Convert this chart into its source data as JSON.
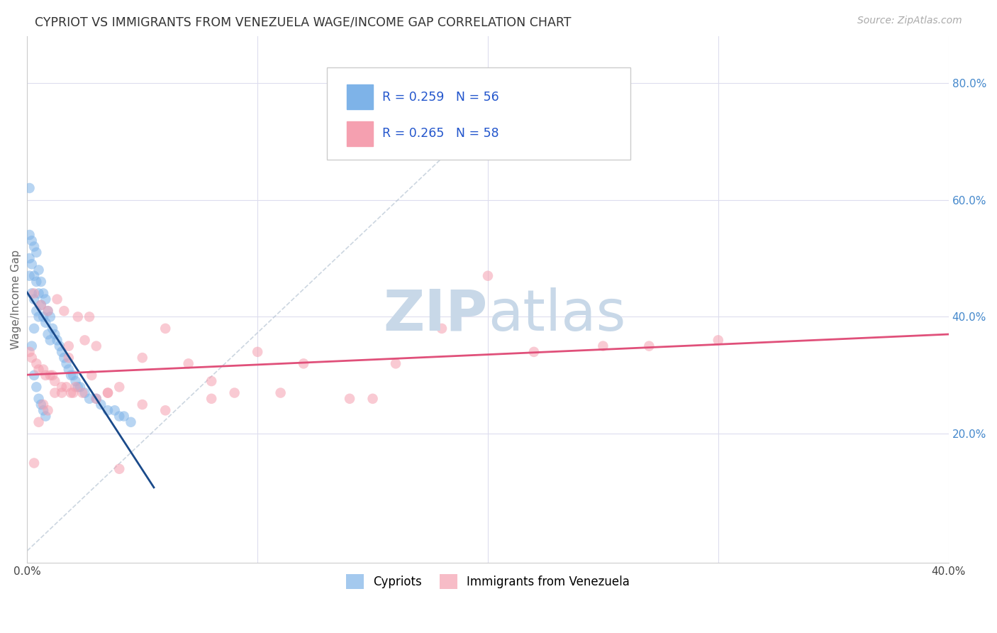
{
  "title": "CYPRIOT VS IMMIGRANTS FROM VENEZUELA WAGE/INCOME GAP CORRELATION CHART",
  "source": "Source: ZipAtlas.com",
  "ylabel": "Wage/Income Gap",
  "xlim": [
    0.0,
    0.4
  ],
  "ylim": [
    -0.02,
    0.88
  ],
  "xticks": [
    0.0,
    0.1,
    0.2,
    0.3,
    0.4
  ],
  "yticks_right": [
    0.2,
    0.4,
    0.6,
    0.8
  ],
  "ytick_labels_right": [
    "20.0%",
    "40.0%",
    "60.0%",
    "80.0%"
  ],
  "xtick_labels": [
    "0.0%",
    "",
    "",
    "",
    "40.0%"
  ],
  "cypriot_R": 0.259,
  "cypriot_N": 56,
  "venezuela_R": 0.265,
  "venezuela_N": 58,
  "blue_color": "#7EB3E8",
  "blue_line_color": "#1A4A8A",
  "pink_color": "#F5A0B0",
  "pink_line_color": "#E0507A",
  "grid_color": "#DDDDEE",
  "watermark_color": "#C8D8E8",
  "cypriot_x": [
    0.001,
    0.001,
    0.001,
    0.002,
    0.002,
    0.002,
    0.003,
    0.003,
    0.003,
    0.003,
    0.004,
    0.004,
    0.004,
    0.005,
    0.005,
    0.005,
    0.006,
    0.006,
    0.007,
    0.007,
    0.008,
    0.008,
    0.009,
    0.009,
    0.01,
    0.01,
    0.011,
    0.012,
    0.013,
    0.014,
    0.015,
    0.016,
    0.017,
    0.018,
    0.019,
    0.02,
    0.021,
    0.022,
    0.023,
    0.025,
    0.027,
    0.03,
    0.032,
    0.035,
    0.038,
    0.04,
    0.042,
    0.045,
    0.001,
    0.002,
    0.003,
    0.004,
    0.005,
    0.006,
    0.007,
    0.008
  ],
  "cypriot_y": [
    0.54,
    0.5,
    0.47,
    0.53,
    0.49,
    0.44,
    0.52,
    0.47,
    0.43,
    0.38,
    0.51,
    0.46,
    0.41,
    0.48,
    0.44,
    0.4,
    0.46,
    0.42,
    0.44,
    0.4,
    0.43,
    0.39,
    0.41,
    0.37,
    0.4,
    0.36,
    0.38,
    0.37,
    0.36,
    0.35,
    0.34,
    0.33,
    0.32,
    0.31,
    0.3,
    0.3,
    0.29,
    0.28,
    0.28,
    0.27,
    0.26,
    0.26,
    0.25,
    0.24,
    0.24,
    0.23,
    0.23,
    0.22,
    0.62,
    0.35,
    0.3,
    0.28,
    0.26,
    0.25,
    0.24,
    0.23
  ],
  "venezuela_x": [
    0.001,
    0.002,
    0.003,
    0.004,
    0.005,
    0.006,
    0.007,
    0.008,
    0.009,
    0.01,
    0.011,
    0.012,
    0.013,
    0.015,
    0.016,
    0.017,
    0.018,
    0.019,
    0.02,
    0.022,
    0.025,
    0.028,
    0.03,
    0.035,
    0.04,
    0.05,
    0.06,
    0.07,
    0.08,
    0.09,
    0.1,
    0.11,
    0.12,
    0.14,
    0.15,
    0.16,
    0.18,
    0.2,
    0.22,
    0.25,
    0.27,
    0.3,
    0.003,
    0.005,
    0.007,
    0.009,
    0.012,
    0.015,
    0.018,
    0.021,
    0.024,
    0.027,
    0.03,
    0.035,
    0.04,
    0.05,
    0.06,
    0.08
  ],
  "venezuela_y": [
    0.34,
    0.33,
    0.44,
    0.32,
    0.31,
    0.42,
    0.31,
    0.3,
    0.41,
    0.3,
    0.3,
    0.29,
    0.43,
    0.28,
    0.41,
    0.28,
    0.35,
    0.27,
    0.27,
    0.4,
    0.36,
    0.3,
    0.35,
    0.27,
    0.28,
    0.33,
    0.38,
    0.32,
    0.26,
    0.27,
    0.34,
    0.27,
    0.32,
    0.26,
    0.26,
    0.32,
    0.38,
    0.47,
    0.34,
    0.35,
    0.35,
    0.36,
    0.15,
    0.22,
    0.25,
    0.24,
    0.27,
    0.27,
    0.33,
    0.28,
    0.27,
    0.4,
    0.26,
    0.27,
    0.14,
    0.25,
    0.24,
    0.29
  ]
}
